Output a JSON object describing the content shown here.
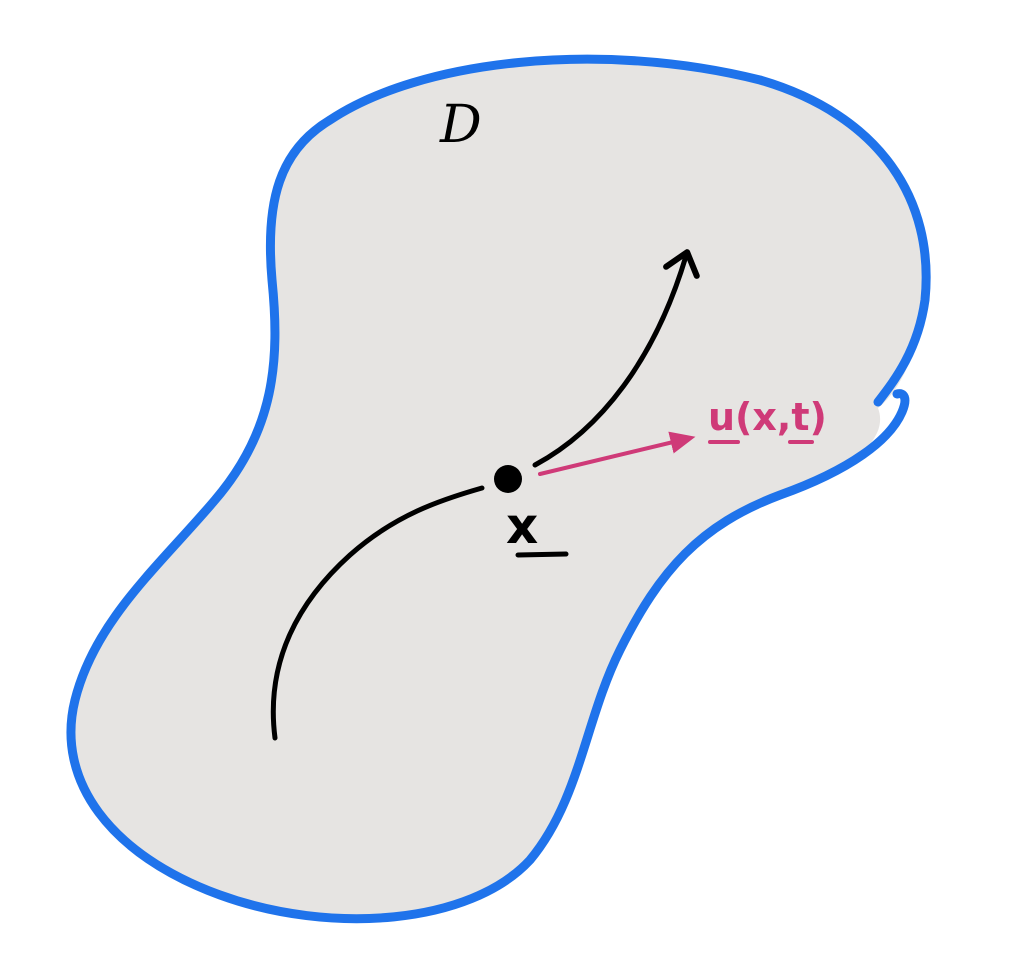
{
  "labels": {
    "domain": "D",
    "point": "x",
    "velocity": "u(x,t)"
  },
  "colors": {
    "background": "#ffffff",
    "region_fill": "#e6e4e2",
    "boundary": "#1f73eb",
    "ink": "#000000",
    "velocity": "#cf3a78"
  }
}
